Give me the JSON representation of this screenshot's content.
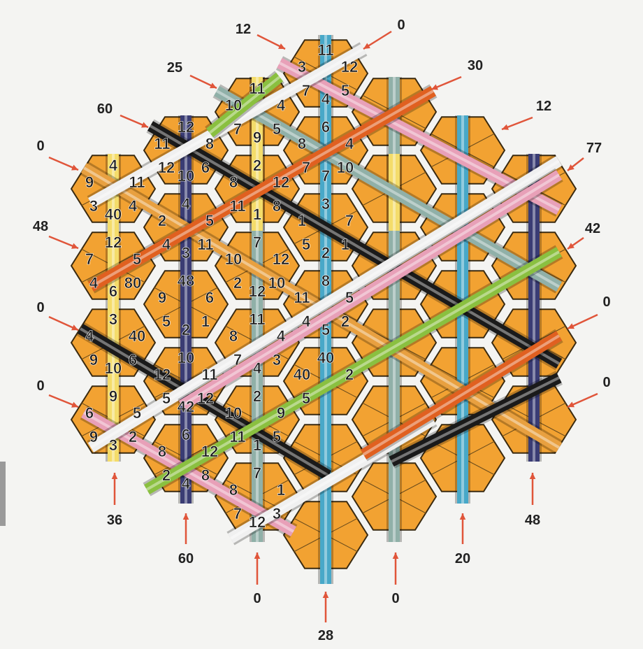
{
  "board": {
    "hex_fill": "#f2a232",
    "hex_edge": "#3a2a10",
    "cell_grid": "#6b4c1c",
    "tile_numbers": [
      "4",
      "9",
      "11",
      "3",
      "4",
      "40",
      "12",
      "7",
      "5",
      "4",
      "80",
      "6",
      "3",
      "4",
      "40",
      "9",
      "6",
      "10",
      "9",
      "6",
      "5",
      "9",
      "2",
      "3",
      "12",
      "11",
      "8",
      "12",
      "6",
      "10",
      "4",
      "2",
      "5",
      "4",
      "11",
      "3",
      "48",
      "9",
      "6",
      "5",
      "1",
      "2",
      "10",
      "12",
      "11",
      "5",
      "12",
      "42",
      "6",
      "8",
      "12",
      "2",
      "8",
      "4",
      "11",
      "10",
      "4",
      "7",
      "5",
      "9",
      "2",
      "8",
      "12",
      "11",
      "8",
      "1",
      "7",
      "10",
      "12",
      "2",
      "10",
      "12",
      "11",
      "8",
      "4",
      "7",
      "3",
      "4",
      "2",
      "10",
      "9",
      "11",
      "5",
      "1",
      "7",
      "8",
      "1",
      "7",
      "3",
      "12",
      "11",
      "3",
      "12",
      "7",
      "5",
      "4",
      "6",
      "8",
      "4",
      "7",
      "10",
      "7",
      "3",
      "1",
      "7",
      "5",
      "1",
      "2",
      "8",
      "11",
      "5",
      "4",
      "2",
      "5",
      "40",
      "40",
      "2",
      "5"
    ],
    "pipe_colors": {
      "yellow": "#f4dc6a",
      "navy": "#3a3c74",
      "teal": "#48a8c8",
      "silver": "#b8c8c0",
      "black": "#1a1a1a",
      "white": "#f0f0f0",
      "pink": "#e8a0b8",
      "green": "#8ac040",
      "orange": "#e06020",
      "sage": "#90b0a8",
      "gold": "#e8a040"
    }
  },
  "scores": {
    "top_left_diagonals": [
      {
        "id": "a",
        "value": "12"
      },
      {
        "id": "b",
        "value": "25"
      },
      {
        "id": "c",
        "value": "60"
      },
      {
        "id": "d",
        "value": "0"
      },
      {
        "id": "e",
        "value": "48"
      },
      {
        "id": "f",
        "value": "0"
      },
      {
        "id": "g",
        "value": "0"
      }
    ],
    "top_right_diagonals": [
      {
        "id": "h",
        "value": "0"
      },
      {
        "id": "i",
        "value": "30"
      },
      {
        "id": "j",
        "value": "12"
      },
      {
        "id": "k",
        "value": "77"
      },
      {
        "id": "l",
        "value": "42"
      },
      {
        "id": "m",
        "value": "0"
      },
      {
        "id": "n",
        "value": "0"
      }
    ],
    "bottom_columns": [
      {
        "id": "o",
        "value": "36"
      },
      {
        "id": "p",
        "value": "60"
      },
      {
        "id": "q",
        "value": "0"
      },
      {
        "id": "r",
        "value": "28"
      },
      {
        "id": "s",
        "value": "0"
      },
      {
        "id": "t",
        "value": "20"
      },
      {
        "id": "u",
        "value": "48"
      }
    ]
  },
  "colors": {
    "arrow": "#e0553a",
    "score_text": "#222222"
  }
}
